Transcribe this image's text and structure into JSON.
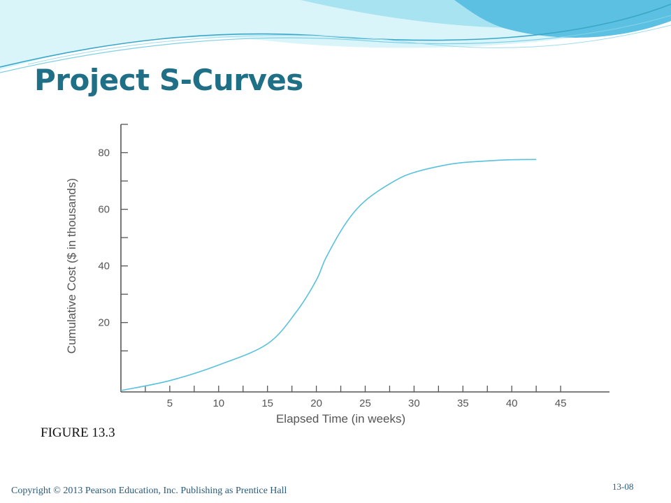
{
  "slide": {
    "title": "Project S-Curves",
    "figure_label": "FIGURE 13.3",
    "copyright": "Copyright © 2013 Pearson Education, Inc. Publishing as Prentice Hall",
    "page_number": "13-08"
  },
  "colors": {
    "title": "#1f6f86",
    "footer_text": "#2a5a7a",
    "curve": "#58c1dd",
    "axis": "#555555",
    "wave_light": "#bfeff7",
    "wave_mid": "#7fd3ec",
    "wave_dark": "#3fa9d4"
  },
  "chart_data": {
    "type": "line",
    "title": "",
    "xlabel": "Elapsed Time (in weeks)",
    "ylabel": "Cumulative Cost ($ in thousands)",
    "xlim": [
      0,
      50
    ],
    "ylim": [
      -4.5,
      90
    ],
    "x_ticks": [
      5,
      10,
      15,
      20,
      25,
      30,
      35,
      40,
      45
    ],
    "y_ticks": [
      20,
      40,
      60,
      80
    ],
    "grid": false,
    "series": [
      {
        "x": [
          0,
          5,
          10,
          15,
          18,
          20,
          21,
          23,
          25,
          28,
          30,
          33,
          35,
          38,
          40,
          42.5
        ],
        "values": [
          -4,
          -0.5,
          5,
          12.5,
          24,
          35,
          43,
          55,
          63,
          70,
          73,
          75.5,
          76.5,
          77.2,
          77.5,
          77.6
        ]
      }
    ]
  }
}
